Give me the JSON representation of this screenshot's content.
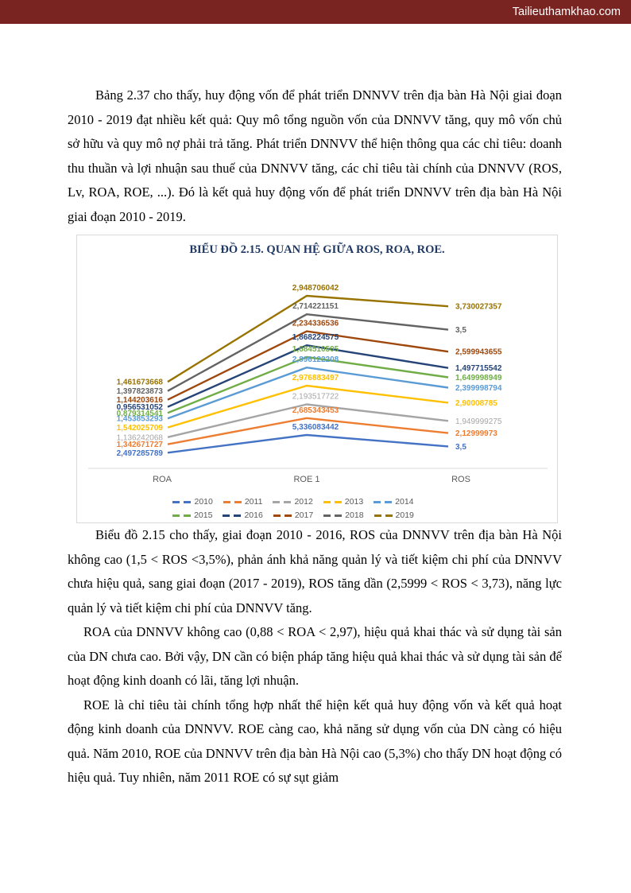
{
  "header": {
    "site_label": "Tailieuthamkhao.com",
    "bar_color": "#7A2422"
  },
  "document": {
    "paragraphs": [
      "Bảng 2.37 cho thấy, huy động vốn để phát triển DNNVV trên địa bàn Hà Nội giai đoạn 2010 - 2019 đạt nhiều kết quả: Quy mô tổng nguồn vốn của DNNVV tăng, quy mô vốn chủ sở hữu và quy mô nợ phải trả tăng. Phát triển DNNVV thể hiện thông qua các chỉ tiêu: doanh thu thuần và lợi nhuận sau thuế của DNNVV tăng, các chỉ tiêu tài chính của DNNVV (ROS, Lv, ROA, ROE, ...). Đó là kết quả huy động vốn để phát triển DNNVV trên địa bàn Hà Nội giai đoạn 2010 - 2019.",
      "Biểu đồ 2.15 cho thấy, giai đoạn 2010 - 2016, ROS của DNNVV trên địa bàn Hà Nội không cao (1,5 < ROS <3,5%), phản ánh khả năng quản lý và tiết kiệm chi phí của DNNVV chưa hiệu quả, sang giai đoạn (2017 - 2019), ROS tăng dần (2,5999 < ROS < 3,73), năng lực quản lý và tiết kiệm chi phí của DNNVV tăng.",
      "ROA của DNNVV không cao (0,88 < ROA < 2,97), hiệu quả khai thác và sử dụng tài sản của DN chưa cao. Bởi vậy, DN cần có biện pháp tăng hiệu quả khai thác và sử dụng tài sản để hoạt động kinh doanh có lãi, tăng lợi nhuận.",
      "ROE là chỉ tiêu tài chính tổng hợp nhất thể hiện kết quả huy động vốn và kết quả hoạt động kinh doanh của DNNVV. ROE càng cao, khả năng sử dụng vốn của DN càng có hiệu quả. Năm 2010, ROE của DNNVV trên địa bàn Hà Nội cao (5,3%) cho thấy DN hoạt động có hiệu quả. Tuy nhiên, năm 2011 ROE có sự sụt giảm"
    ]
  },
  "chart_data": {
    "type": "line",
    "stacked": true,
    "title": "BIỂU ĐỒ 2.15. QUAN HỆ GIỮA ROS, ROA, ROE.",
    "title_color": "#1F3864",
    "categories": [
      "ROA",
      "ROE 1",
      "ROS"
    ],
    "category_label_color": "#595959",
    "axis_line_color": "#D9D9D9",
    "grid": false,
    "legend_position": "bottom",
    "legend_rows": [
      [
        "2010",
        "2011",
        "2012",
        "2013",
        "2014"
      ],
      [
        "2015",
        "2016",
        "2017",
        "2018",
        "2019"
      ]
    ],
    "series": [
      {
        "name": "2010",
        "color": "#4472C4",
        "label_bold": true,
        "values": [
          2.497285789,
          5.336083442,
          3.5
        ],
        "labels": [
          "2,497285789",
          "5,336083442",
          "3,5"
        ]
      },
      {
        "name": "2011",
        "color": "#ED7D31",
        "label_bold": true,
        "values": [
          1.342671727,
          2.685343453,
          2.12999973
        ],
        "labels": [
          "1,342671727",
          "2,685343453",
          "2,12999973"
        ]
      },
      {
        "name": "2012",
        "color": "#A5A5A5",
        "label_bold": false,
        "values": [
          1.136242068,
          2.193517722,
          1.949999275
        ],
        "labels": [
          "1,136242068",
          "2,193517722",
          "1,949999275"
        ]
      },
      {
        "name": "2013",
        "color": "#FFC000",
        "label_bold": true,
        "values": [
          1.542025709,
          2.976883497,
          2.90008785
        ],
        "labels": [
          "1,542025709",
          "2,976883497",
          "2,90008785"
        ]
      },
      {
        "name": "2014",
        "color": "#5B9BD5",
        "label_bold": true,
        "values": [
          1.453853293,
          2.896122208,
          2.399998794
        ],
        "labels": [
          "1,453853293",
          "2,896122208",
          "2,399998794"
        ]
      },
      {
        "name": "2015",
        "color": "#70AD47",
        "label_bold": true,
        "values": [
          0.879314541,
          1.684510505,
          1.649998949
        ],
        "labels": [
          "0,879314541",
          "1,684510505",
          "1,649998949"
        ]
      },
      {
        "name": "2016",
        "color": "#264478",
        "label_bold": true,
        "values": [
          0.956531052,
          1.868224575,
          1.497715542
        ],
        "labels": [
          "0,956531052",
          "1,868224575",
          "1,497715542"
        ]
      },
      {
        "name": "2017",
        "color": "#9E480E",
        "label_bold": true,
        "values": [
          1.144203616,
          2.234336536,
          2.599943655
        ],
        "labels": [
          "1,144203616",
          "2,234336536",
          "2,599943655"
        ]
      },
      {
        "name": "2018",
        "color": "#636363",
        "label_bold": true,
        "values": [
          1.397823873,
          2.714221151,
          3.5
        ],
        "labels": [
          "1,397823873",
          "2,714221151",
          "3,5"
        ]
      },
      {
        "name": "2019",
        "color": "#997300",
        "label_bold": true,
        "values": [
          1.461673668,
          2.948706042,
          3.730027357
        ],
        "labels": [
          "1,461673668",
          "2,948706042",
          "3,730027357"
        ]
      }
    ]
  }
}
